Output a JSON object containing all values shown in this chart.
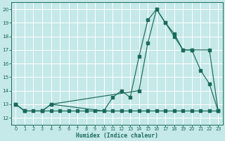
{
  "xlabel": "Humidex (Indice chaleur)",
  "bg_color": "#c5e8e8",
  "grid_color": "#ffffff",
  "line_color": "#1a6b5a",
  "xlim": [
    -0.5,
    23.5
  ],
  "ylim": [
    11.5,
    20.5
  ],
  "xticks": [
    0,
    1,
    2,
    3,
    4,
    5,
    6,
    7,
    8,
    9,
    10,
    11,
    12,
    13,
    14,
    15,
    16,
    17,
    18,
    19,
    20,
    21,
    22,
    23
  ],
  "yticks": [
    12,
    13,
    14,
    15,
    16,
    17,
    18,
    19,
    20
  ],
  "line1_x": [
    0,
    1,
    2,
    3,
    4,
    5,
    6,
    7,
    8,
    9,
    10,
    11,
    12,
    13,
    14,
    15,
    16,
    17,
    18,
    19,
    20,
    21,
    22,
    23
  ],
  "line1_y": [
    13,
    12.5,
    12.5,
    12.5,
    12.5,
    12.5,
    12.5,
    12.5,
    12.5,
    12.5,
    12.5,
    12.5,
    12.5,
    12.5,
    12.5,
    12.5,
    12.5,
    12.5,
    12.5,
    12.5,
    12.5,
    12.5,
    12.5,
    12.5
  ],
  "line2_x": [
    0,
    1,
    3,
    4,
    10,
    11,
    12,
    13,
    14,
    15,
    16,
    17,
    18,
    19,
    20,
    21,
    22,
    23
  ],
  "line2_y": [
    13,
    12.5,
    12.5,
    13,
    12.5,
    13.5,
    14,
    13.5,
    16.5,
    19.2,
    20,
    19,
    18,
    17,
    17,
    15.5,
    14.5,
    12.5
  ],
  "line3_x": [
    0,
    1,
    3,
    4,
    14,
    15,
    16,
    17,
    18,
    19,
    20,
    22,
    23
  ],
  "line3_y": [
    13,
    12.5,
    12.5,
    13,
    14,
    17.5,
    20,
    19,
    18.2,
    17,
    17,
    17,
    12.5
  ]
}
